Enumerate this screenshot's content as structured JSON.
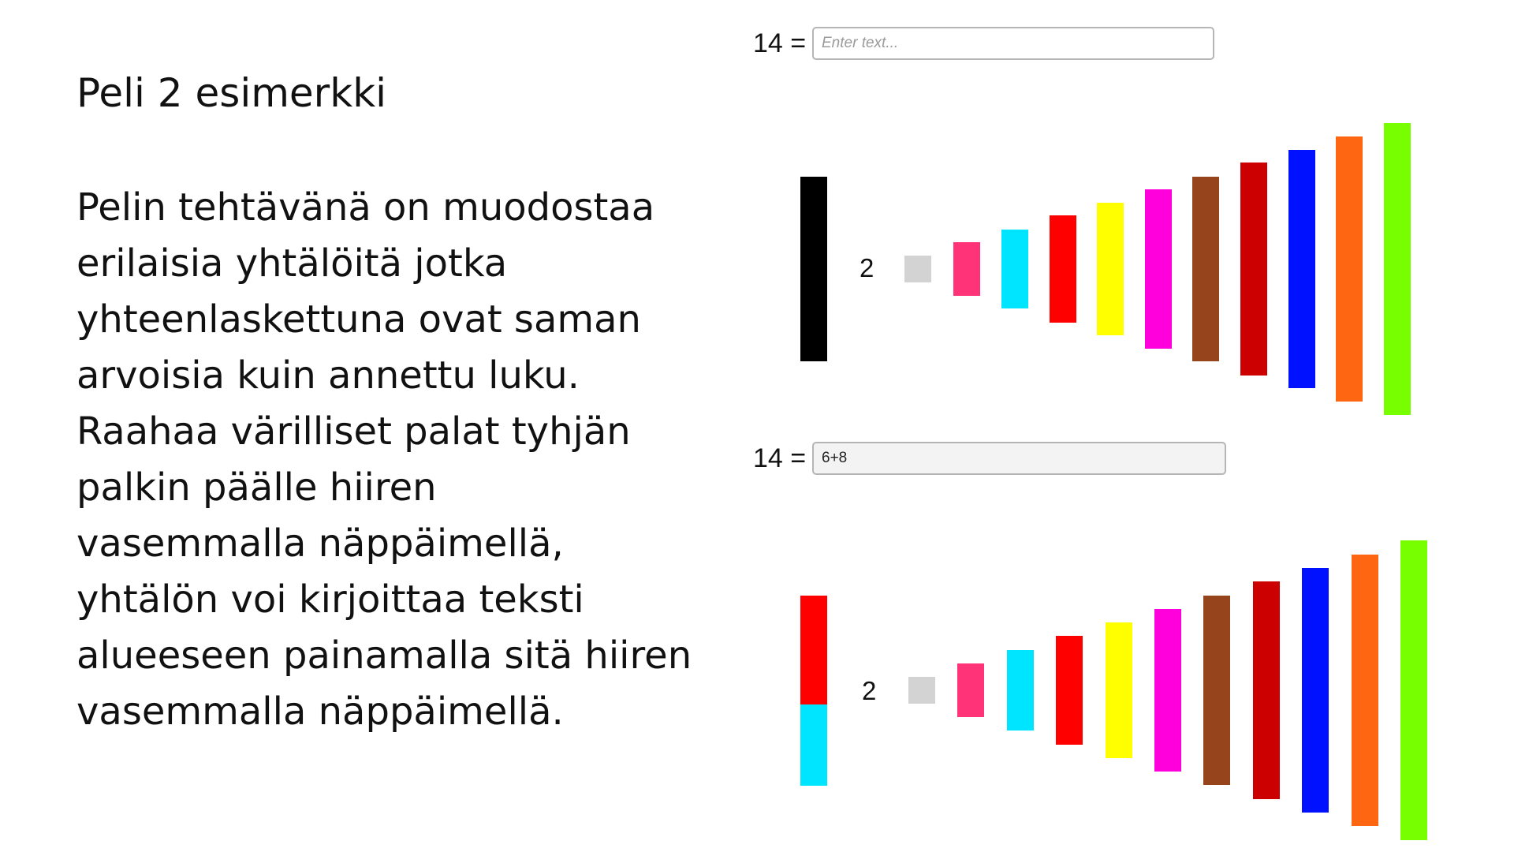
{
  "slide": {
    "title": "Peli 2 esimerkki",
    "body_lines": [
      "Pelin tehtävänä on muodostaa",
      "erilaisia yhtälöitä jotka",
      "yhteenlaskettuna ovat saman",
      "arvoisia kuin annettu luku.",
      "Raahaa värilliset palat tyhjän",
      "palkin päälle hiiren",
      "vasemmalla näppäimellä,",
      "yhtälön voi kirjoittaa teksti",
      "alueeseen painamalla sitä hiiren",
      "vasemmalla näppäimellä."
    ]
  },
  "example_1": {
    "equation_label": "14 =",
    "input_value": "",
    "input_placeholder": "Enter text...",
    "target_color": "#000000",
    "unit_label": "2"
  },
  "example_2": {
    "equation_label": "14 =",
    "input_value": "6+8",
    "input_placeholder": "",
    "target_segments": [
      {
        "color": "#ff0000",
        "value": 8
      },
      {
        "color": "#00e5ff",
        "value": 6
      }
    ],
    "unit_label": "2"
  },
  "rod_palette": [
    {
      "name": "rod-light-gray",
      "color": "#d3d3d3"
    },
    {
      "name": "rod-pink",
      "color": "#ff3377"
    },
    {
      "name": "rod-cyan",
      "color": "#00e5ff"
    },
    {
      "name": "rod-red",
      "color": "#ff0000"
    },
    {
      "name": "rod-yellow",
      "color": "#ffff00"
    },
    {
      "name": "rod-magenta",
      "color": "#ff00dd"
    },
    {
      "name": "rod-brown",
      "color": "#96441c"
    },
    {
      "name": "rod-dark-red",
      "color": "#cc0000"
    },
    {
      "name": "rod-blue",
      "color": "#0011ff"
    },
    {
      "name": "rod-orange",
      "color": "#ff6611"
    },
    {
      "name": "rod-lime",
      "color": "#77ff00"
    }
  ]
}
